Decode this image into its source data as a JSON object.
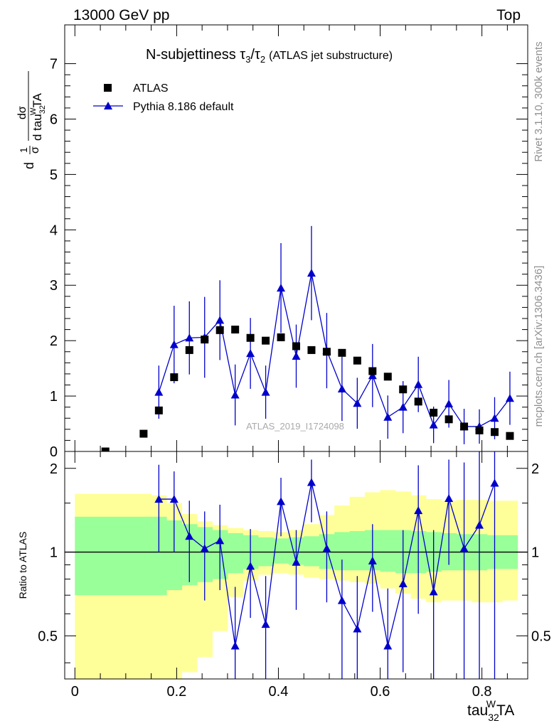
{
  "header": {
    "energy": "13000 GeV pp",
    "process": "Top"
  },
  "side_labels": {
    "rivet": "Rivet 3.1.10,  300k events",
    "mcplots": "mcplots.cern.ch [arXiv:1306.3436]"
  },
  "colors": {
    "data": "#000000",
    "mc": "#0000cc",
    "band_stat": "#99ff99",
    "band_total": "#ffff99"
  },
  "chart_data": [
    {
      "type": "scatter",
      "panel": "main",
      "title": "N-subjettiness τ3/τ2",
      "title_note": "(ATLAS jet substructure)",
      "watermark": "ATLAS_2019_I1724098",
      "ylabel": "1/σ dσ/d tau32WTA",
      "xlabel": "tau32WTA",
      "xlim": [
        -0.02,
        0.89
      ],
      "ylim": [
        0,
        7.7
      ],
      "yticks": [
        0,
        1,
        2,
        3,
        4,
        5,
        6,
        7
      ],
      "ytick_labels": [
        "0",
        "1",
        "2",
        "3",
        "4",
        "5",
        "6",
        "7"
      ],
      "series": [
        {
          "name": "ATLAS",
          "marker": "square",
          "x": [
            0.06,
            0.135,
            0.165,
            0.195,
            0.225,
            0.255,
            0.285,
            0.315,
            0.345,
            0.375,
            0.405,
            0.435,
            0.465,
            0.495,
            0.525,
            0.555,
            0.585,
            0.615,
            0.645,
            0.675,
            0.705,
            0.735,
            0.765,
            0.795,
            0.825,
            0.855
          ],
          "y": [
            0.0,
            0.32,
            0.74,
            1.34,
            1.83,
            2.02,
            2.19,
            2.2,
            2.05,
            2.0,
            2.06,
            1.9,
            1.83,
            1.8,
            1.78,
            1.64,
            1.45,
            1.35,
            1.12,
            0.9,
            0.7,
            0.58,
            0.45,
            0.38,
            0.35,
            0.28
          ]
        },
        {
          "name": "Pythia 8.186 default",
          "marker": "triangle",
          "x": [
            0.165,
            0.195,
            0.225,
            0.255,
            0.285,
            0.315,
            0.345,
            0.375,
            0.405,
            0.435,
            0.465,
            0.495,
            0.525,
            0.555,
            0.585,
            0.615,
            0.645,
            0.675,
            0.705,
            0.735,
            0.765,
            0.795,
            0.825,
            0.855
          ],
          "y": [
            1.07,
            1.93,
            2.05,
            2.06,
            2.37,
            1.02,
            1.77,
            1.07,
            2.95,
            1.72,
            3.22,
            1.82,
            1.13,
            0.87,
            1.37,
            0.62,
            0.8,
            1.21,
            0.48,
            0.86,
            0.45,
            0.45,
            0.6,
            0.96
          ],
          "yerr": [
            0.48,
            0.7,
            0.66,
            0.73,
            0.72,
            0.55,
            0.64,
            0.48,
            0.81,
            0.57,
            0.85,
            0.68,
            0.58,
            0.46,
            0.57,
            0.39,
            0.47,
            0.5,
            0.33,
            0.43,
            0.32,
            0.31,
            0.38,
            0.48
          ]
        }
      ]
    },
    {
      "type": "line",
      "panel": "ratio",
      "ylabel": "Ratio to ATLAS",
      "xlabel": "tau32WTA",
      "xlim": [
        -0.02,
        0.89
      ],
      "ylim": [
        0.35,
        2.3
      ],
      "yscale": "log",
      "yticks": [
        0.5,
        1,
        2
      ],
      "ytick_labels": [
        "0.5",
        "1",
        "2"
      ],
      "xticks": [
        0,
        0.2,
        0.4,
        0.6,
        0.8
      ],
      "xtick_labels": [
        "0",
        "0.2",
        "0.4",
        "0.6",
        "0.8"
      ],
      "reference_line": 1,
      "bands": {
        "edges": [
          0.0,
          0.15,
          0.18,
          0.21,
          0.24,
          0.27,
          0.3,
          0.33,
          0.36,
          0.39,
          0.42,
          0.45,
          0.48,
          0.51,
          0.54,
          0.57,
          0.6,
          0.63,
          0.66,
          0.69,
          0.72,
          0.75,
          0.78,
          0.81,
          0.84,
          0.87
        ],
        "stat_low": [
          0.7,
          0.7,
          0.73,
          0.76,
          0.78,
          0.8,
          0.84,
          0.87,
          0.89,
          0.91,
          0.9,
          0.89,
          0.87,
          0.86,
          0.86,
          0.86,
          0.85,
          0.84,
          0.84,
          0.85,
          0.86,
          0.86,
          0.86,
          0.87,
          0.87
        ],
        "stat_high": [
          1.34,
          1.34,
          1.3,
          1.26,
          1.23,
          1.2,
          1.17,
          1.15,
          1.13,
          1.12,
          1.13,
          1.14,
          1.16,
          1.18,
          1.19,
          1.2,
          1.2,
          1.2,
          1.19,
          1.18,
          1.17,
          1.16,
          1.16,
          1.15,
          1.15
        ],
        "total_low": [
          0.25,
          0.29,
          0.33,
          0.37,
          0.42,
          0.52,
          0.69,
          0.79,
          0.83,
          0.84,
          0.83,
          0.81,
          0.8,
          0.79,
          0.78,
          0.77,
          0.74,
          0.71,
          0.68,
          0.66,
          0.67,
          0.67,
          0.66,
          0.66,
          0.67
        ],
        "total_high": [
          1.62,
          1.6,
          1.5,
          1.37,
          1.29,
          1.25,
          1.22,
          1.2,
          1.19,
          1.18,
          1.2,
          1.26,
          1.36,
          1.47,
          1.58,
          1.64,
          1.67,
          1.65,
          1.6,
          1.55,
          1.53,
          1.54,
          1.54,
          1.53,
          1.53
        ]
      },
      "series": [
        {
          "name": "Pythia 8.186 default",
          "x": [
            0.165,
            0.195,
            0.225,
            0.255,
            0.285,
            0.315,
            0.345,
            0.375,
            0.405,
            0.435,
            0.465,
            0.495,
            0.525,
            0.555,
            0.585,
            0.615,
            0.645,
            0.675,
            0.705,
            0.735,
            0.765,
            0.795,
            0.825
          ],
          "y": [
            1.55,
            1.55,
            1.14,
            1.03,
            1.1,
            0.46,
            0.89,
            0.55,
            1.52,
            0.92,
            1.78,
            1.03,
            0.67,
            0.53,
            0.93,
            0.46,
            0.77,
            1.41,
            0.72,
            1.56,
            1.03,
            1.25,
            1.77
          ],
          "ylow": [
            1.0,
            1.0,
            0.78,
            0.67,
            0.73,
            0.2,
            0.58,
            0.3,
            1.14,
            0.62,
            1.28,
            0.66,
            0.35,
            0.2,
            0.61,
            0.2,
            0.37,
            0.6,
            0.28,
            0.9,
            0.25,
            0.35,
            0.3
          ],
          "yhigh": [
            2.06,
            1.95,
            1.53,
            1.4,
            1.48,
            0.75,
            1.21,
            0.82,
            1.85,
            1.2,
            2.15,
            1.4,
            0.94,
            0.82,
            1.26,
            0.74,
            1.2,
            2.05,
            1.2,
            2.15,
            2.1,
            2.5,
            2.8
          ]
        }
      ]
    }
  ]
}
